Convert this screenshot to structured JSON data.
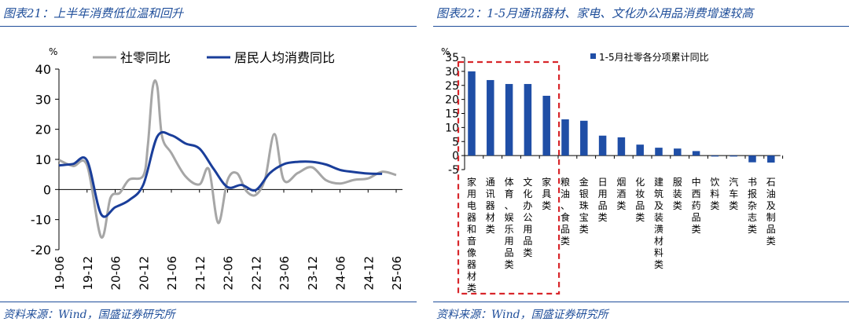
{
  "left": {
    "title": "图表21：上半年消费低位温和回升",
    "source": "资料来源：Wind，国盛证券研究所"
  },
  "right": {
    "title": "图表22：1-5月通讯器材、家电、文化办公用品消费增速较高",
    "source": "资料来源：Wind，国盛证券研究所"
  },
  "colors": {
    "navy": "#1a3e9a",
    "gray": "#a6a6a6",
    "bar": "#1f4ea6",
    "box": "#d8262b",
    "header": "#1f4e9a"
  },
  "chart_data": [
    {
      "type": "line",
      "unit_label": "%",
      "ylim": [
        -20,
        40
      ],
      "yticks": [
        -20,
        -10,
        0,
        10,
        20,
        30,
        40
      ],
      "xlabel_ticks": [
        "19-06",
        "19-12",
        "20-06",
        "20-12",
        "21-06",
        "21-12",
        "22-06",
        "22-12",
        "23-06",
        "23-12",
        "24-06",
        "24-12",
        "25-06"
      ],
      "legend_position": "top",
      "series": [
        {
          "name": "社零同比",
          "color": "#a6a6a6",
          "points": [
            [
              "19-06",
              9.8
            ],
            [
              "19-09",
              7.8
            ],
            [
              "19-12",
              8.0
            ],
            [
              "20-03",
              -15.8
            ],
            [
              "20-05",
              -2.8
            ],
            [
              "20-07",
              -1.1
            ],
            [
              "20-09",
              3.3
            ],
            [
              "20-12",
              4.6
            ],
            [
              "21-01",
              15
            ],
            [
              "21-02",
              33.8
            ],
            [
              "21-03",
              34.2
            ],
            [
              "21-04",
              17.7
            ],
            [
              "21-06",
              12.1
            ],
            [
              "21-09",
              4.4
            ],
            [
              "21-12",
              1.7
            ],
            [
              "22-02",
              6.7
            ],
            [
              "22-04",
              -11.1
            ],
            [
              "22-06",
              3.1
            ],
            [
              "22-08",
              5.4
            ],
            [
              "22-10",
              -0.5
            ],
            [
              "22-12",
              -1.8
            ],
            [
              "23-02",
              3.5
            ],
            [
              "23-04",
              18.4
            ],
            [
              "23-06",
              3.1
            ],
            [
              "23-09",
              5.5
            ],
            [
              "23-12",
              7.4
            ],
            [
              "24-03",
              3.1
            ],
            [
              "24-06",
              2.0
            ],
            [
              "24-09",
              3.2
            ],
            [
              "24-12",
              3.7
            ],
            [
              "25-03",
              5.9
            ],
            [
              "25-06",
              4.8
            ]
          ]
        },
        {
          "name": "居民人均消费同比",
          "color": "#1a3e9a",
          "points": [
            [
              "19-06",
              8.0
            ],
            [
              "19-09",
              8.5
            ],
            [
              "19-12",
              9.6
            ],
            [
              "20-03",
              -8.2
            ],
            [
              "20-06",
              -5.9
            ],
            [
              "20-09",
              -3.5
            ],
            [
              "20-12",
              1.6
            ],
            [
              "21-03",
              17.6
            ],
            [
              "21-06",
              18.0
            ],
            [
              "21-09",
              15.3
            ],
            [
              "21-12",
              13.6
            ],
            [
              "22-03",
              6.9
            ],
            [
              "22-06",
              0.8
            ],
            [
              "22-09",
              1.5
            ],
            [
              "22-12",
              -0.2
            ],
            [
              "23-03",
              5.4
            ],
            [
              "23-06",
              8.4
            ],
            [
              "23-09",
              9.2
            ],
            [
              "23-12",
              9.2
            ],
            [
              "24-03",
              8.3
            ],
            [
              "24-06",
              6.5
            ],
            [
              "24-09",
              5.8
            ],
            [
              "24-12",
              5.3
            ],
            [
              "25-03",
              5.2
            ]
          ]
        }
      ]
    },
    {
      "type": "bar",
      "unit_label": "%",
      "ylim": [
        -5,
        35
      ],
      "yticks": [
        -5,
        0,
        5,
        10,
        15,
        20,
        25,
        30,
        35
      ],
      "legend_position": "top",
      "series": [
        {
          "name": "1-5月社零各分项累计同比",
          "color": "#1f4ea6"
        }
      ],
      "categories": [
        "家用电器和音像器材类",
        "通讯器材类",
        "体育、娱乐用品类",
        "文化办公用品类",
        "家具类",
        "粮油、食品类",
        "金银珠宝类",
        "日用品类",
        "烟酒类",
        "化妆品类",
        "建筑及装潢材料类",
        "服装类",
        "中西药品类",
        "饮料类",
        "汽车类",
        "书报杂志类",
        "石油及制品类"
      ],
      "values": [
        30.0,
        26.9,
        25.5,
        25.5,
        21.3,
        12.9,
        12.4,
        7.1,
        6.5,
        3.9,
        2.8,
        2.5,
        1.6,
        -0.1,
        -0.2,
        -2.4,
        -2.5
      ],
      "highlight_box_count": 5
    }
  ]
}
